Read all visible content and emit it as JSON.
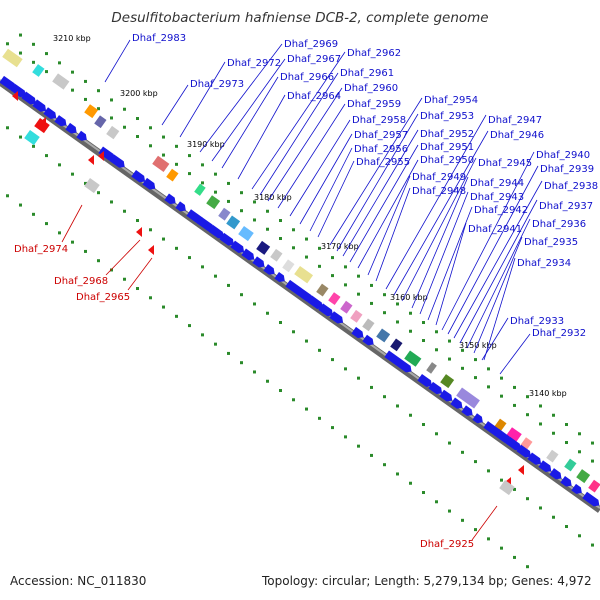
{
  "header": {
    "title": "Desulfitobacterium hafniense DCB-2, complete genome"
  },
  "footer": {
    "accession": "Accession: NC_011830",
    "summary": "Topology: circular; Length: 5,279,134 bp; Genes: 4,972"
  },
  "colors": {
    "forward_gene": "#1a1ae6",
    "reverse_gene": "#ee1111",
    "plus_label": "#1010cc",
    "minus_label": "#cc0000",
    "backbone": "#808080",
    "tick": "#228b22"
  },
  "kbp_ticks": [
    "3210 kbp",
    "3200 kbp",
    "3190 kbp",
    "3180 kbp",
    "3170 kbp",
    "3160 kbp",
    "3150 kbp",
    "3140 kbp"
  ],
  "genes_plus": [
    "Dhaf_2983",
    "Dhaf_2973",
    "Dhaf_2972",
    "Dhaf_2969",
    "Dhaf_2967",
    "Dhaf_2966",
    "Dhaf_2964",
    "Dhaf_2962",
    "Dhaf_2961",
    "Dhaf_2960",
    "Dhaf_2959",
    "Dhaf_2958",
    "Dhaf_2957",
    "Dhaf_2956",
    "Dhaf_2955",
    "Dhaf_2954",
    "Dhaf_2953",
    "Dhaf_2952",
    "Dhaf_2951",
    "Dhaf_2950",
    "Dhaf_2949",
    "Dhaf_2948",
    "Dhaf_2947",
    "Dhaf_2946",
    "Dhaf_2945",
    "Dhaf_2944",
    "Dhaf_2943",
    "Dhaf_2942",
    "Dhaf_2941",
    "Dhaf_2940",
    "Dhaf_2939",
    "Dhaf_2938",
    "Dhaf_2937",
    "Dhaf_2936",
    "Dhaf_2935",
    "Dhaf_2934",
    "Dhaf_2933",
    "Dhaf_2932"
  ],
  "genes_minus": [
    "Dhaf_2974",
    "Dhaf_2968",
    "Dhaf_2965",
    "Dhaf_2925"
  ]
}
